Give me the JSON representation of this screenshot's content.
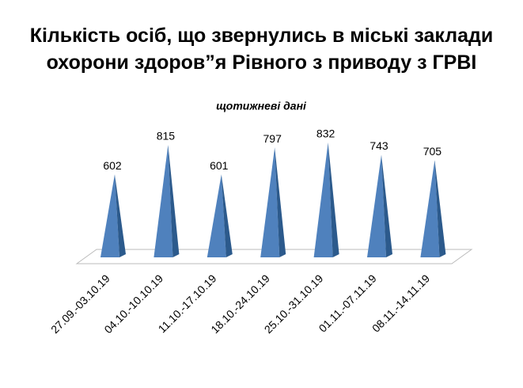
{
  "chart_data": {
    "type": "pyramid",
    "title": "Кількість осіб, що звернулись в міські заклади охорони здоров”я Рівного з приводу з ГРВІ",
    "subtitle": "щотижневі дані",
    "categories": [
      "27.09.-03.10.19",
      "04.10.-10.10.19",
      "11.10.-17.10.19",
      "18.10.-24.10.19",
      "25.10.-31.10.19",
      "01.11.-07.11.19",
      "08.11.-14.11.19"
    ],
    "values": [
      602,
      815,
      601,
      797,
      832,
      743,
      705
    ],
    "color": "#4f81bd"
  }
}
